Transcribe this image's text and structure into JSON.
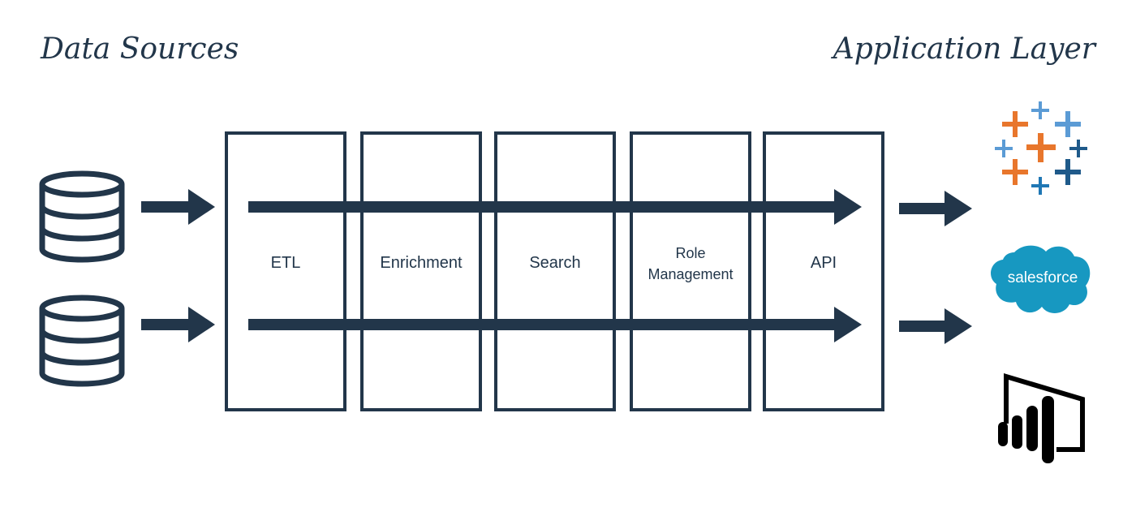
{
  "headings": {
    "left": "Data Sources",
    "right": "Application Layer"
  },
  "stages": [
    {
      "label": "ETL"
    },
    {
      "label": "Enrichment"
    },
    {
      "label": "Search"
    },
    {
      "label_line1": "Role",
      "label_line2": "Management"
    },
    {
      "label": "API"
    }
  ],
  "data_sources": [
    "database-icon",
    "database-icon"
  ],
  "applications": [
    {
      "icon": "tableau-logo-icon"
    },
    {
      "icon": "salesforce-logo-icon",
      "text": "salesforce"
    },
    {
      "icon": "powerbi-logo-icon"
    }
  ],
  "colors": {
    "primary": "#22364a",
    "tableau_orange": "#e8762c",
    "tableau_blue": "#1f77b4",
    "tableau_teal": "#5b9bd5",
    "salesforce_blue": "#1798c1"
  }
}
